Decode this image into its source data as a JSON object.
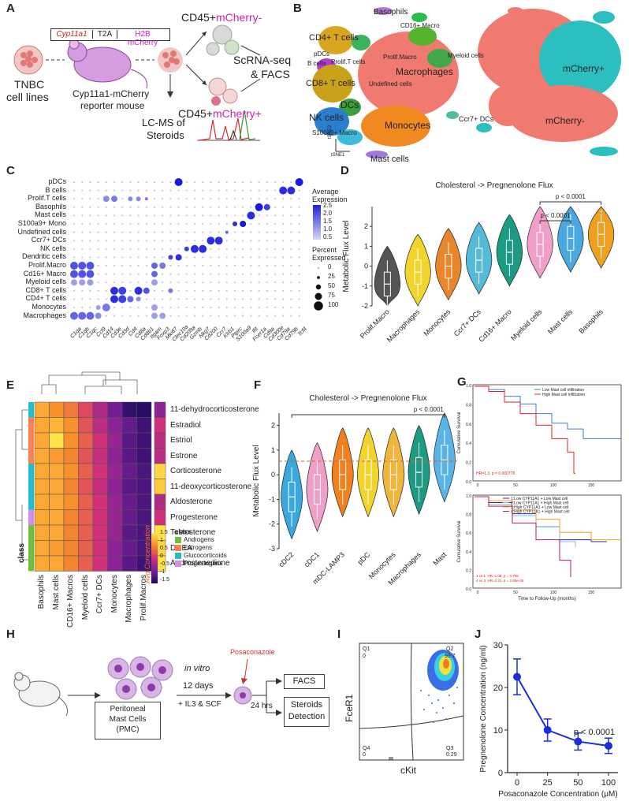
{
  "panels": {
    "A": {
      "letter": "A",
      "construct": [
        "Cyp11a1",
        "T2A",
        "H2B mCherry"
      ],
      "tnbc_line1": "TNBC",
      "tnbc_line2": "cell lines",
      "mouse_line1": "Cyp11a1-mCherry",
      "mouse_line2": "reporter mouse",
      "neg_prefix": "CD45+",
      "neg_suffix": "mCherry-",
      "pos_prefix": "CD45+",
      "pos_suffix": "mCherry+",
      "scrna_line1": "ScRNA-seq",
      "scrna_line2": "& FACS",
      "lcms_line1": "LC-MS of",
      "lcms_line2": "Steroids"
    },
    "B": {
      "letter": "B",
      "clusters": [
        "Basophils",
        "CD16+ Macro",
        "CD4+ T cells",
        "pDCs",
        "B cells",
        "Prolif.T cells",
        "Prolif.Macro",
        "Myeloid cells",
        "Macrophages",
        "CD8+ T cells",
        "Undefined cells",
        "DCs",
        "NK cells",
        "Ccr7+ DCs",
        "S100a9+ Macro",
        "Monocytes",
        "Mast cells"
      ],
      "axis_y": "tSNE2",
      "axis_x": "tSNE1",
      "right_labels": [
        "mCherry+",
        "mCherry-"
      ]
    },
    "C": {
      "letter": "C",
      "rows": [
        "pDCs",
        "B cells",
        "Prolif.T cells",
        "Basophils",
        "Mast cells",
        "S100a9+ Mono",
        "Undefined cells",
        "Ccr7+ DCs",
        "NK cells",
        "Dendritic cells",
        "Prolif.Macro",
        "Cd16+ Macro",
        "Myeloid cells",
        "CD8+ T cells",
        "CD4+ T cells",
        "Monocytes",
        "Macrophages"
      ],
      "genes": [
        "C1qa",
        "C1qb",
        "C1qc",
        "Ccl9",
        "Cd14",
        "Cd3e",
        "Cd3d",
        "Cd4",
        "Cd8a",
        "Cd8b1",
        "Itgam",
        "Foxp3",
        "Mki67",
        "Clec10a",
        "Cd209a",
        "Gzmb",
        "Nkg7",
        "Cd200",
        "Ccr7",
        "Klrb1",
        "Ptprc",
        "S100a9",
        "Ifit",
        "Fcer1a",
        "Cd9a",
        "Cd300e",
        "Cd79a",
        "Cd79b",
        "Tcf4"
      ],
      "legend_title1": "Average",
      "legend_title2": "Expression",
      "avg_ticks": [
        "2.5",
        "2.0",
        "1.5",
        "1.0",
        "0.5"
      ],
      "pct_title1": "Percent",
      "pct_title2": "Expressed",
      "pct_ticks": [
        "0",
        "25",
        "50",
        "75",
        "100"
      ]
    },
    "E": {
      "letter": "E",
      "rows": [
        "11-dehydrocorticosterone",
        "Estradiol",
        "Estriol",
        "Estrone",
        "Corticosterone",
        "11-deoxycorticosterone",
        "Aldosterone",
        "Progesterone",
        "Testosterone",
        "DHEA",
        "Androstenedione"
      ],
      "cols": [
        "Basophils",
        "Mast cells",
        "CD16+ Macros",
        "Myeloid cells",
        "Ccr7+ DCs",
        "Monocytes",
        "Macrophages",
        "Prolif.Macros"
      ],
      "class_label": "class",
      "avg_label": "Avg Concentration",
      "scale_ticks": [
        "1.5",
        "1",
        "0.5",
        "0",
        "-0.5",
        "-1",
        "-1.5"
      ],
      "legend_title": "class",
      "classes": [
        "Androgens",
        "Estrogens",
        "Glucocorticoids",
        "Progestogens"
      ],
      "class_colors": [
        "#6fbf3f",
        "#ff7f50",
        "#20c0c8",
        "#d58be8"
      ]
    },
    "H": {
      "letter": "H",
      "pmc": [
        "Peritoneal",
        "Mast Cells",
        "(PMC)"
      ],
      "invitro": "in vitro",
      "days": "12 days",
      "il3": "+ IL3 & SCF",
      "posa": "Posaconazole",
      "hrs": "24 hrs",
      "facs": "FACS",
      "steroids": [
        "Steroids",
        "Detection"
      ]
    },
    "I": {
      "letter": "I",
      "q1": "Q1",
      "q1v": "0",
      "q2": "Q2",
      "q2v": "99.7",
      "q3": "Q3",
      "q3v": "0.29",
      "q4": "Q4",
      "q4v": "0",
      "ylabel": "FceR1",
      "xlabel": "cKit"
    },
    "G": {
      "letter": "G",
      "top_legend": [
        "Low Mast cell infiltration",
        "High Mast cell infiltration"
      ],
      "top_stat": "HR=1.3, p = 0.000778",
      "bottom_legend": [
        "1:Low CYP11A1 + Low Mast cell",
        "2:Low CYP11A1 + High Mast cell",
        "3:High CYP11A1 + Low Mast cell",
        "4:High CYP11A1 + High Mast cell"
      ],
      "bottom_stat1": "2 vs 1: HR=1.09, p = 0.708",
      "bottom_stat2": "4 vs 3: HR=3.31, p = 2.85e-05",
      "ylabel": "Cumulative Survival",
      "xlabel": "Time to Follow-Up (months)",
      "yticks": [
        "1.0",
        "0.8",
        "0.6",
        "0.4",
        "0.2",
        "0.0"
      ],
      "xticks": [
        "0",
        "50",
        "100",
        "150"
      ]
    }
  },
  "chart_data": [
    {
      "id": "D",
      "letter": "D",
      "type": "violin",
      "title": "Cholesterol -> Pregnenolone Flux",
      "ylabel": "Metabolic Flux Level",
      "categories": [
        "Prolif.Macro",
        "Macrophages",
        "Monocytes",
        "Ccr7+ DCs",
        "Cd16+ Macro",
        "Myeloid cells",
        "Mast cells",
        "Basophils"
      ],
      "medians": [
        -0.9,
        -0.3,
        0.0,
        0.3,
        0.7,
        1.1,
        1.4,
        1.6
      ],
      "colors": [
        "#555555",
        "#f2d52c",
        "#e9862b",
        "#55b9d8",
        "#1a9b82",
        "#f0a0c8",
        "#4aa8e0",
        "#f0a020"
      ],
      "ylim": [
        -2,
        3
      ],
      "yticks": [
        -2,
        -1,
        0,
        1,
        2
      ],
      "annotations": [
        "p < 0.0001",
        "p < 0.0001"
      ]
    },
    {
      "id": "F",
      "letter": "F",
      "type": "violin",
      "title": "Cholesterol -> Pregnenolone Flux",
      "ylabel": "Metabolic Flux Level",
      "categories": [
        "cDC2",
        "cDC1",
        "mDC-LAMP3",
        "pDC",
        "Monocytes",
        "Macrophages",
        "Mast"
      ],
      "medians": [
        -0.9,
        -0.6,
        0.0,
        0.0,
        0.0,
        0.1,
        0.6
      ],
      "colors": [
        "#3aa8e0",
        "#f0a0c8",
        "#f08020",
        "#f2d52c",
        "#f2b53c",
        "#1a9b82",
        "#58b4e8"
      ],
      "ylim": [
        -3,
        2.5
      ],
      "yticks": [
        -3,
        -2,
        -1,
        0,
        1,
        2
      ],
      "annotations": [
        "p < 0.0001"
      ]
    },
    {
      "id": "J",
      "letter": "J",
      "type": "line",
      "x": [
        0,
        25,
        50,
        100
      ],
      "xticks": [
        "0",
        "25",
        "50",
        "100"
      ],
      "values": [
        22.5,
        10.0,
        7.3,
        6.3
      ],
      "errors": [
        4.2,
        2.6,
        2.0,
        1.8
      ],
      "ylim": [
        0,
        30
      ],
      "yticks": [
        0,
        10,
        20,
        30
      ],
      "xlabel": "Posaconazole Concentration (μM)",
      "ylabel": "Pregnenolone Concentration (ng/ml)",
      "annotation": "p < 0.0001",
      "color": "#1a2fd8"
    }
  ]
}
